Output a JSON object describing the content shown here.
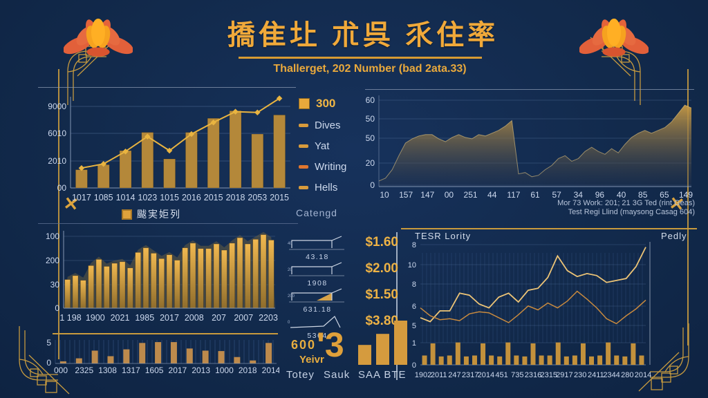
{
  "theme": {
    "bg": "#122a4c",
    "gold": "#e8a93b",
    "gold_deep": "#c99b3d",
    "bar": "#b4883a",
    "bar_light_top": "#f0b850",
    "bar_light_bottom": "#8f6d2c",
    "bar_small": "#bd8a4c",
    "bar_dual": "#c3913c",
    "line_accent": "#e9b440",
    "line_bright": "#edc476",
    "line_dark": "#c98a3e",
    "area_top": "#c89a44",
    "area_bottom": "#23314b",
    "axis_text": "#cdd9ee",
    "grid": "rgba(130,160,210,0.28)",
    "axis": "#8fa2bf",
    "hatch": "rgba(90,130,190,0.33)",
    "spark_stroke": "#cdd6e4",
    "wedge_fill": "#d8a348",
    "lotus_red": "#e2603a",
    "lotus_gold": "#f6a21f",
    "lotus_center": "#ffaf24"
  },
  "header": {
    "title": "撟隹圵 朮呉 乑住率",
    "subtitle": "Thallerget, 202 Number (bad 2ata.33)"
  },
  "legend_main": {
    "label": "颰実姖列"
  },
  "side_legend": {
    "items": [
      {
        "label": "300",
        "style": "first"
      },
      {
        "label": "Dives",
        "style": ""
      },
      {
        "label": "Yat",
        "style": ""
      },
      {
        "label": "Writing",
        "style": "hot"
      },
      {
        "label": "Hells",
        "style": ""
      }
    ],
    "footer": "Catengd"
  },
  "ticker": {
    "rows": [
      {
        "axis": "40",
        "spark": "box",
        "label": "43.18",
        "price": "$1.60"
      },
      {
        "axis": "20",
        "spark": "box",
        "label": "1908",
        "price": "$2.00"
      },
      {
        "axis": "200",
        "spark": "wedge",
        "label": "631.18",
        "price": "$1.50"
      },
      {
        "axis": "0",
        "spark": "peak",
        "label": "5364",
        "price": "$3.80"
      }
    ],
    "summary": {
      "value": "600",
      "unit": "Yeivr",
      "big": "'3",
      "bars": [
        45,
        70,
        100
      ]
    },
    "footer": [
      "Totey",
      "Sauk",
      "SAA BTE"
    ]
  },
  "chart_data": [
    {
      "id": "combo",
      "type": "bar",
      "categories": [
        "1017",
        "1085",
        "1014",
        "1023",
        "1015",
        "2016",
        "2015",
        "2018",
        "2053",
        "2015"
      ],
      "series": [
        {
          "name": "bars",
          "type": "bar",
          "values": [
            22,
            28,
            45,
            67,
            35,
            67,
            84,
            93,
            65,
            88
          ]
        },
        {
          "name": "trend",
          "type": "line",
          "values": [
            24,
            29,
            44,
            62,
            45,
            65,
            79,
            92,
            91,
            108
          ]
        }
      ],
      "y_ticks": [
        "9000",
        "6010",
        "2010",
        "00"
      ],
      "ylim": [
        0,
        110
      ],
      "legend": "颰実姖列"
    },
    {
      "id": "area",
      "type": "area",
      "x_ticks": [
        "10",
        "157",
        "147",
        "00",
        "251",
        "44",
        "117",
        "61",
        "57",
        "34",
        "96",
        "40",
        "85",
        "65",
        "149"
      ],
      "values": [
        4,
        6,
        12,
        22,
        31,
        34,
        36,
        37,
        37,
        34,
        32,
        35,
        37,
        35,
        34,
        37,
        36,
        38,
        40,
        43,
        47,
        9,
        10,
        7,
        8,
        12,
        15,
        20,
        22,
        18,
        20,
        25,
        28,
        25,
        23,
        27,
        24,
        30,
        35,
        38,
        40,
        38,
        40,
        42,
        46,
        52,
        58,
        56
      ],
      "ylim": [
        0,
        62
      ],
      "y_ticks": [
        "60",
        "50",
        "50",
        "20",
        "0"
      ],
      "caption": [
        "Mor 73 Work: 201; 21 3G Ted (rint Geas)",
        "Test Regi Llind (maysong Casag 604)"
      ]
    },
    {
      "id": "peaks",
      "type": "bar",
      "y_ticks": [
        "100",
        "200",
        "30",
        "0"
      ],
      "x_ticks": [
        "1 198",
        "1900",
        "2021",
        "1985",
        "2017",
        "2008",
        "207",
        "2007",
        "2203"
      ],
      "values": [
        37,
        42,
        36,
        55,
        63,
        54,
        58,
        60,
        52,
        72,
        78,
        71,
        64,
        69,
        62,
        78,
        84,
        77,
        77,
        83,
        75,
        84,
        91,
        83,
        89,
        95,
        88
      ],
      "ylim": [
        0,
        100
      ]
    },
    {
      "id": "strip",
      "type": "bar",
      "y_ticks": [
        "5",
        "0"
      ],
      "x_ticks": [
        "000",
        "2325",
        "1308",
        "1317",
        "1605",
        "2017",
        "2013",
        "1000",
        "2018",
        "2014"
      ],
      "values": [
        0.5,
        1.2,
        3,
        1.7,
        3.3,
        4.8,
        5,
        5,
        3.5,
        3,
        2.9,
        1.5,
        0.7,
        4.8
      ],
      "ylim": [
        0,
        5.5
      ]
    },
    {
      "id": "dual",
      "type": "line",
      "title_left": "TESR Lority",
      "title_right": "Pedly",
      "y_ticks": [
        "8",
        "10",
        "8",
        "6",
        "5",
        "1",
        "0"
      ],
      "x_ticks": [
        "1902",
        "2011",
        "247",
        "2317",
        "2014",
        "451",
        "735",
        "2316",
        "2315",
        "2917",
        "230",
        "2411",
        "2344",
        "280",
        "2014"
      ],
      "series": [
        {
          "name": "bright",
          "values": [
            4.8,
            4.4,
            5.5,
            5.5,
            7.3,
            7.1,
            6.2,
            5.8,
            6.9,
            7.3,
            6.4,
            7.6,
            7.8,
            8.9,
            11.1,
            9.6,
            9.0,
            9.3,
            9.1,
            8.4,
            8.6,
            8.8,
            10.0,
            12.0
          ]
        },
        {
          "name": "dark",
          "values": [
            5.8,
            5.0,
            4.6,
            4.7,
            4.5,
            5.2,
            5.4,
            5.3,
            4.8,
            4.3,
            5.1,
            6.0,
            5.6,
            6.3,
            5.8,
            6.5,
            7.5,
            6.7,
            5.8,
            4.7,
            4.2,
            5.0,
            5.7,
            6.6
          ]
        }
      ],
      "bars": [
        0.5,
        1.15,
        0.45,
        0.5,
        1.2,
        0.45,
        0.5,
        1.15,
        0.5,
        0.45,
        1.2,
        0.5,
        0.45,
        1.15,
        0.5,
        0.5,
        1.2,
        0.45,
        0.5,
        1.15,
        0.45,
        0.5,
        1.2,
        0.5,
        0.45,
        1.15,
        0.5
      ],
      "ylim": [
        0,
        13
      ]
    }
  ]
}
